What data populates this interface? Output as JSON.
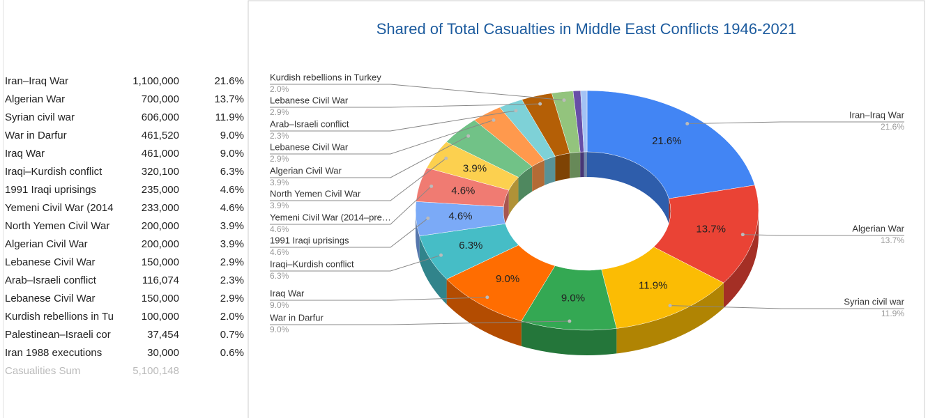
{
  "table": {
    "rows": [
      [
        "Iran–Iraq War",
        "1,100,000",
        "21.6%"
      ],
      [
        "Algerian War",
        "700,000",
        "13.7%"
      ],
      [
        "Syrian civil war",
        "606,000",
        "11.9%"
      ],
      [
        "War in Darfur",
        "461,520",
        "9.0%"
      ],
      [
        "Iraq War",
        "461,000",
        "9.0%"
      ],
      [
        "Iraqi–Kurdish conflict",
        "320,100",
        "6.3%"
      ],
      [
        "1991 Iraqi uprisings",
        "235,000",
        "4.6%"
      ],
      [
        "Yemeni Civil War (2014",
        "233,000",
        "4.6%"
      ],
      [
        "North Yemen Civil War",
        "200,000",
        "3.9%"
      ],
      [
        "Algerian Civil War",
        "200,000",
        "3.9%"
      ],
      [
        "Lebanese Civil War",
        "150,000",
        "2.9%"
      ],
      [
        "Arab–Israeli conflict",
        "116,074",
        "2.3%"
      ],
      [
        "Lebanese Civil War",
        "150,000",
        "2.9%"
      ],
      [
        "Kurdish rebellions in Tu",
        "100,000",
        "2.0%"
      ],
      [
        "Palestinean–Israeli cor",
        "37,454",
        "0.7%"
      ],
      [
        "Iran 1988 executions",
        "30,000",
        "0.6%"
      ]
    ],
    "footer": [
      "Casualities Sum",
      "5,100,148"
    ]
  },
  "chart_data": {
    "type": "donut3d",
    "title": "Shared of Total Casualties in Middle East Conflicts 1946-2021",
    "categories": [
      "Iran–Iraq War",
      "Algerian War",
      "Syrian civil war",
      "War in Darfur",
      "Iraq War",
      "Iraqi–Kurdish conflict",
      "1991 Iraqi uprisings",
      "Yemeni Civil War (2014–pre…",
      "North Yemen Civil War",
      "Algerian Civil War",
      "Lebanese Civil War",
      "Arab–Israeli conflict",
      "Lebanese Civil War",
      "Kurdish rebellions in Turkey",
      null,
      null
    ],
    "values": [
      21.6,
      13.7,
      11.9,
      9.0,
      9.0,
      6.3,
      4.6,
      4.6,
      3.9,
      3.9,
      2.9,
      2.3,
      2.9,
      2.0,
      0.7,
      0.6
    ],
    "value_labels": [
      "21.6%",
      "13.7%",
      "11.9%",
      "9.0%",
      "9.0%",
      "6.3%",
      "4.6%",
      "4.6%",
      "3.9%",
      "3.9%",
      "2.9%",
      "2.3%",
      "2.9%",
      "2.0%",
      null,
      null
    ],
    "colors": [
      "#4285f4",
      "#ea4335",
      "#fbbc04",
      "#34a853",
      "#ff6d01",
      "#46bdc6",
      "#7baaf7",
      "#f07b72",
      "#fcd04f",
      "#71c287",
      "#ff994d",
      "#7ed1d7",
      "#b45f06",
      "#93c47d",
      "#674ea7",
      "#a4c2f4"
    ]
  }
}
